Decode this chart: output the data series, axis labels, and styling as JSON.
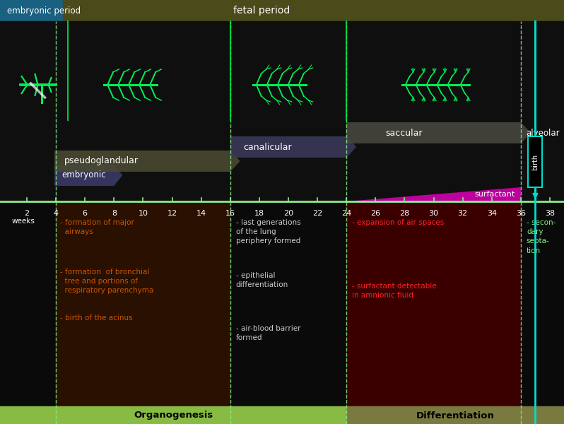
{
  "bg_top_embryonic": "#1a6080",
  "bg_top_fetal": "#4a4a1a",
  "bg_upper_dark": "#111111",
  "bg_lower_brown": "#2a1000",
  "bg_lower_black": "#0a0a0a",
  "bg_lower_darkred": "#3a0000",
  "bg_lower_farright": "#0a0a0a",
  "bg_bottom_green": "#88bb44",
  "bg_bottom_olive": "#7a7a40",
  "embryonic_period_label": "embryonic period",
  "fetal_period_label": "fetal period",
  "weeks_label": "weeks",
  "week_ticks": [
    2,
    4,
    6,
    8,
    10,
    12,
    14,
    16,
    18,
    20,
    22,
    24,
    26,
    28,
    30,
    32,
    34,
    36,
    38
  ],
  "dashed_weeks": [
    4,
    16,
    24,
    36
  ],
  "birth_week": 37,
  "surfactant_color": "#cc00aa",
  "timeline_color": "#88ee88",
  "birth_box_color": "#00ddcc",
  "text_color_white": "#ffffff",
  "text_color_green": "#88ee88",
  "text_color_orange": "#cc5500",
  "text_color_red": "#ff2222",
  "organogenesis_label": "Organogenesis",
  "differentiation_label": "Differentiation",
  "col1_texts": [
    "- formation of major\n  airways",
    "- formation  of bronchial\n  tree and portions of\n  respiratory parenchyma",
    "- birth of the acinus"
  ],
  "col2_texts": [
    "- last generations\nof the lung\nperiphery formed",
    "- epithelial\ndifferentiation",
    "- air-blood barrier\nformed"
  ],
  "col3_texts": [
    "- expansion of air spaces",
    "- surfactant detectable\nin amnionic fluid"
  ],
  "col4_texts": [
    "- secon-\ndary\nsepta-\ntion"
  ]
}
